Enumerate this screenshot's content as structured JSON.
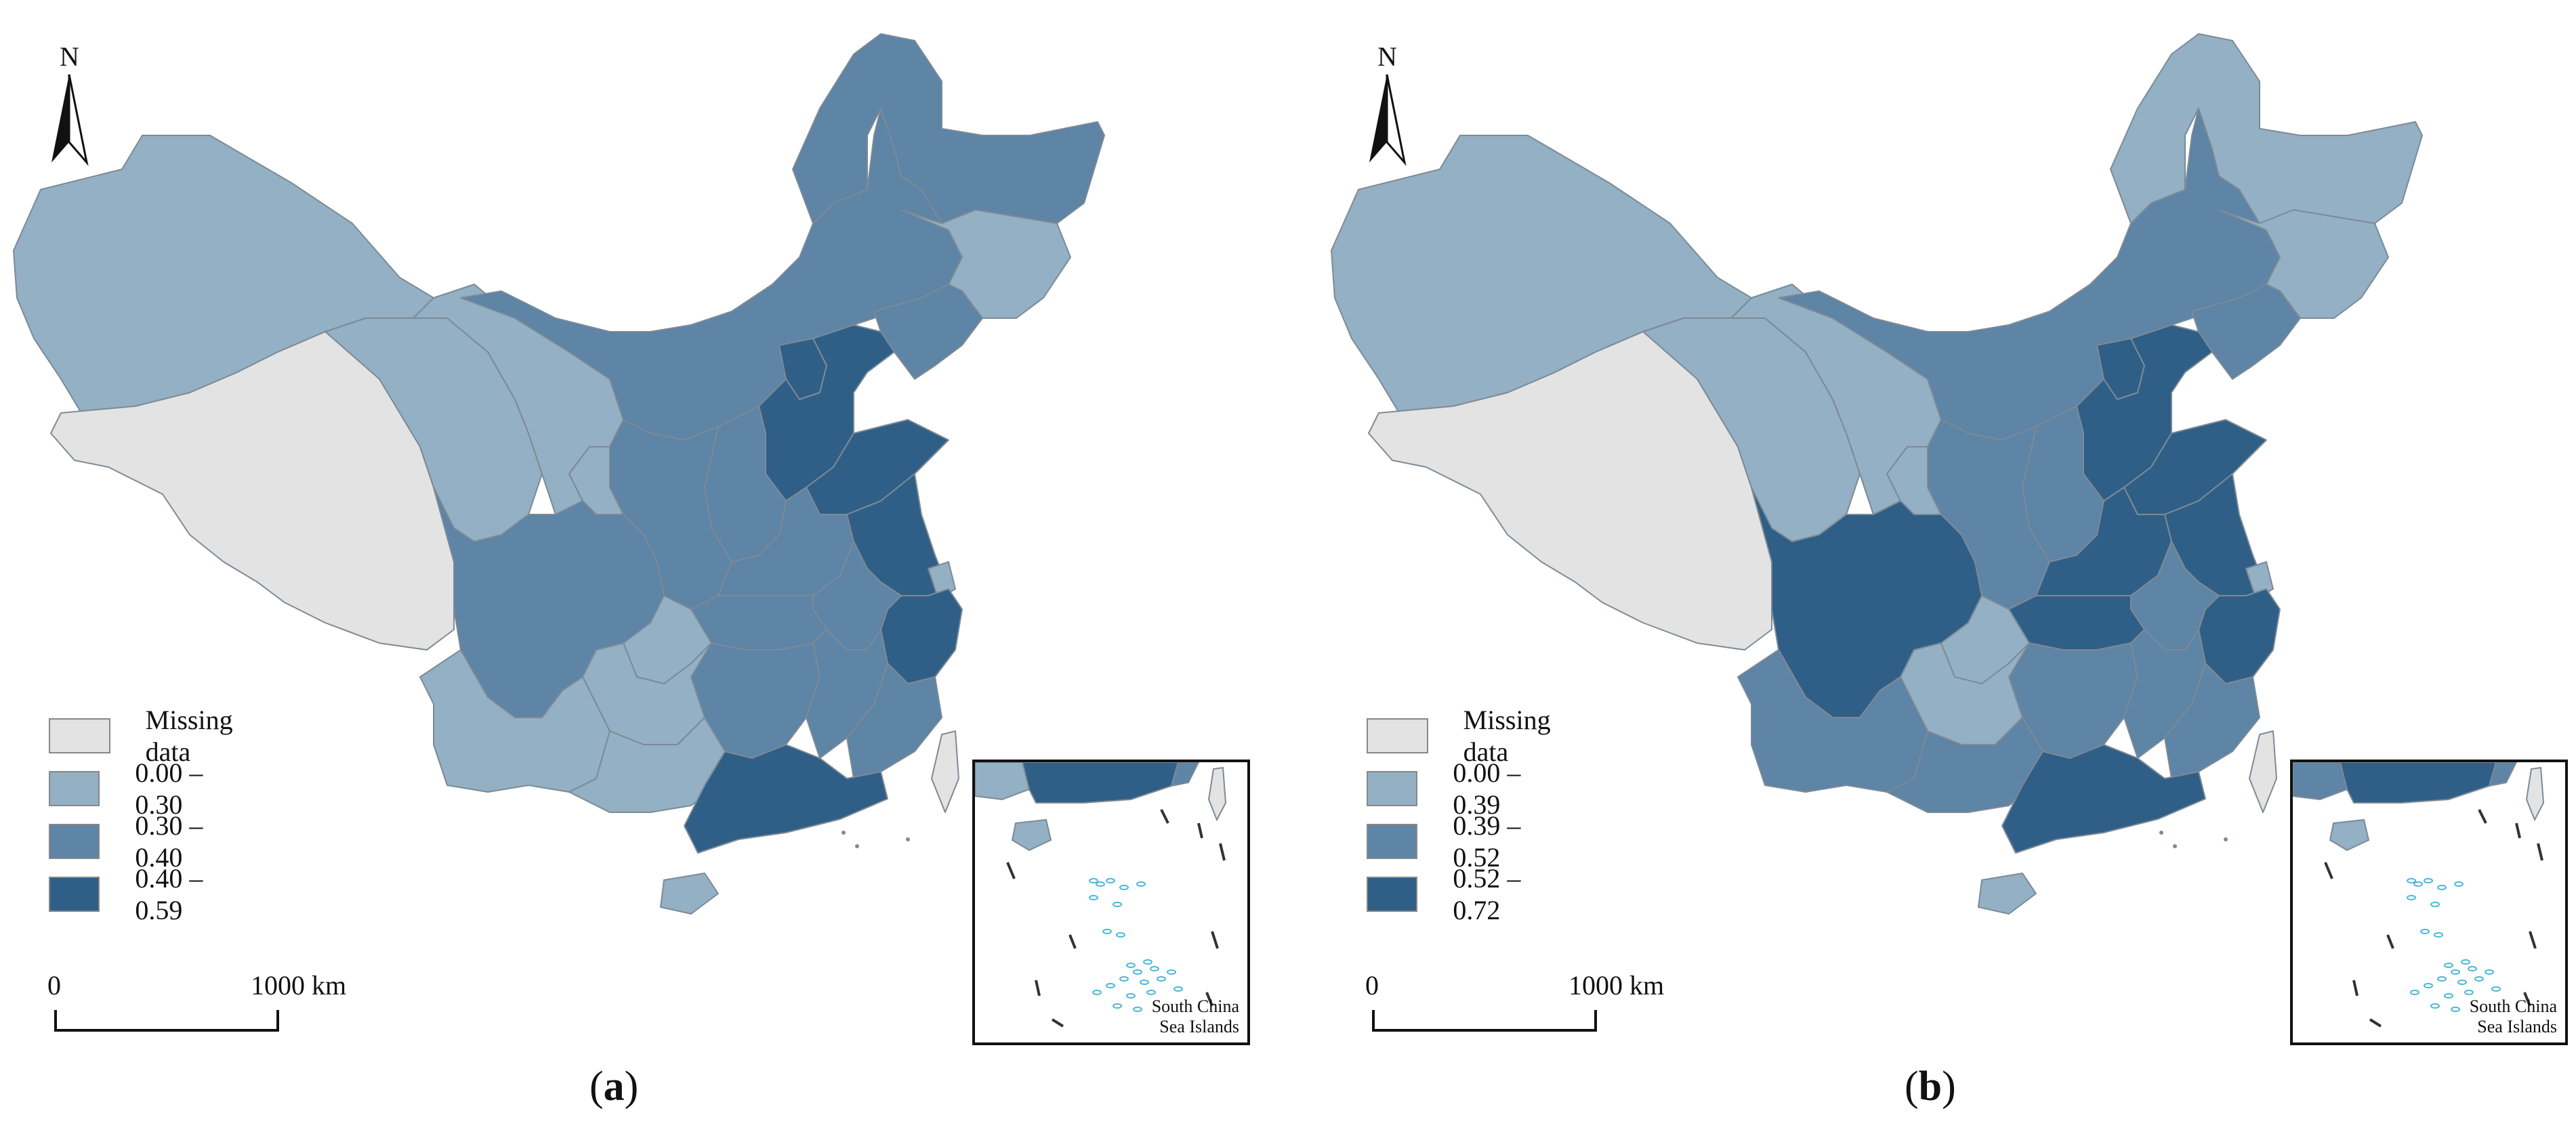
{
  "colors": {
    "missing": "#e3e3e3",
    "low": "#93b0c4",
    "mid": "#5e84a6",
    "high": "#2f5f86",
    "border": "#7d8a96",
    "islands": "#4bb8d6"
  },
  "north_label": "N",
  "scale_bar": {
    "zero": "0",
    "end": "1000 km"
  },
  "inset_label": {
    "line1": "South China",
    "line2": "Sea Islands"
  },
  "maps": [
    {
      "caption_open": "(",
      "caption_letter": "a",
      "caption_close": ")",
      "legend": [
        {
          "label": "Missing data",
          "class": "missing"
        },
        {
          "label": "0.00 – 0.30",
          "class": "low"
        },
        {
          "label": "0.30 – 0.40",
          "class": "mid"
        },
        {
          "label": "0.40 – 0.59",
          "class": "high"
        }
      ],
      "regions": {
        "xinjiang": "low",
        "tibet": "missing",
        "qinghai": "low",
        "gansu": "low",
        "inner_mongolia": "mid",
        "heilongjiang": "mid",
        "jilin": "low",
        "liaoning": "mid",
        "beijing_tianjin": "high",
        "hebei": "high",
        "shandong": "high",
        "shanxi": "mid",
        "shaanxi": "mid",
        "ningxia": "low",
        "henan": "mid",
        "jiangsu": "high",
        "shanghai": "low",
        "zhejiang": "high",
        "anhui": "mid",
        "hubei": "mid",
        "sichuan": "mid",
        "chongqing": "low",
        "hunan": "mid",
        "jiangxi": "mid",
        "fujian": "mid",
        "guizhou": "low",
        "yunnan": "low",
        "guangxi": "low",
        "guangdong": "high",
        "hainan": "low",
        "taiwan": "missing"
      }
    },
    {
      "caption_open": "(",
      "caption_letter": "b",
      "caption_close": ")",
      "legend": [
        {
          "label": "Missing data",
          "class": "missing"
        },
        {
          "label": "0.00 – 0.39",
          "class": "low"
        },
        {
          "label": "0.39 – 0.52",
          "class": "mid"
        },
        {
          "label": "0.52 – 0.72",
          "class": "high"
        }
      ],
      "regions": {
        "xinjiang": "low",
        "tibet": "missing",
        "qinghai": "low",
        "gansu": "low",
        "inner_mongolia": "mid",
        "heilongjiang": "low",
        "jilin": "low",
        "liaoning": "mid",
        "beijing_tianjin": "high",
        "hebei": "high",
        "shandong": "high",
        "shanxi": "mid",
        "shaanxi": "mid",
        "ningxia": "low",
        "henan": "high",
        "jiangsu": "high",
        "shanghai": "low",
        "zhejiang": "high",
        "anhui": "mid",
        "hubei": "high",
        "sichuan": "high",
        "chongqing": "low",
        "hunan": "mid",
        "jiangxi": "mid",
        "fujian": "mid",
        "guizhou": "low",
        "yunnan": "mid",
        "guangxi": "mid",
        "guangdong": "high",
        "hainan": "low",
        "taiwan": "missing"
      }
    }
  ]
}
